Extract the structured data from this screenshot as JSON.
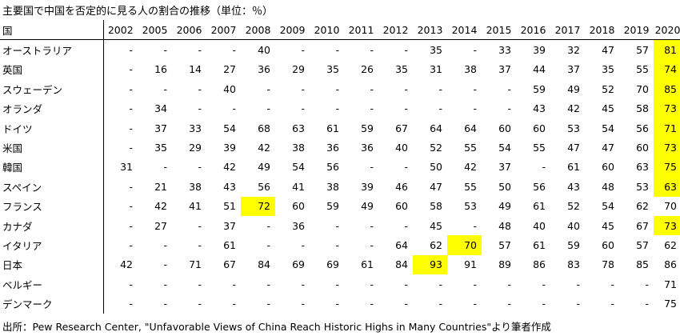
{
  "title": "主要国で中国を否定的に見る人の割合の推移（単位：％）",
  "source": "出所：Pew Research Center, \"Unfavorable Views of China Reach Historic Highs in Many Countries\"より筆者作成",
  "highlight_color": "#ffff00",
  "table": {
    "header": {
      "country_label": "国",
      "years": [
        "2002",
        "2005",
        "2006",
        "2007",
        "2008",
        "2009",
        "2010",
        "2011",
        "2012",
        "2013",
        "2014",
        "2015",
        "2016",
        "2017",
        "2018",
        "2019",
        "2020"
      ]
    },
    "rows": [
      {
        "country": "オーストラリア",
        "values": [
          "-",
          "-",
          "-",
          "-",
          "40",
          "-",
          "-",
          "-",
          "-",
          "35",
          "-",
          "33",
          "39",
          "32",
          "47",
          "57",
          "81"
        ],
        "highlight": [
          16
        ]
      },
      {
        "country": "英国",
        "values": [
          "-",
          "16",
          "14",
          "27",
          "36",
          "29",
          "35",
          "26",
          "35",
          "31",
          "38",
          "37",
          "44",
          "37",
          "35",
          "55",
          "74"
        ],
        "highlight": [
          16
        ]
      },
      {
        "country": "スウェーデン",
        "values": [
          "-",
          "-",
          "-",
          "40",
          "-",
          "-",
          "-",
          "-",
          "-",
          "-",
          "-",
          "-",
          "59",
          "49",
          "52",
          "70",
          "85"
        ],
        "highlight": [
          16
        ]
      },
      {
        "country": "オランダ",
        "values": [
          "-",
          "34",
          "-",
          "-",
          "-",
          "-",
          "-",
          "-",
          "-",
          "-",
          "-",
          "-",
          "43",
          "42",
          "45",
          "58",
          "73"
        ],
        "highlight": [
          16
        ]
      },
      {
        "country": "ドイツ",
        "values": [
          "-",
          "37",
          "33",
          "54",
          "68",
          "63",
          "61",
          "59",
          "67",
          "64",
          "64",
          "60",
          "60",
          "53",
          "54",
          "56",
          "71"
        ],
        "highlight": [
          16
        ]
      },
      {
        "country": "米国",
        "values": [
          "-",
          "35",
          "29",
          "39",
          "42",
          "38",
          "36",
          "36",
          "40",
          "52",
          "55",
          "54",
          "55",
          "47",
          "47",
          "60",
          "73"
        ],
        "highlight": [
          16
        ]
      },
      {
        "country": "韓国",
        "values": [
          "31",
          "-",
          "-",
          "42",
          "49",
          "54",
          "56",
          "-",
          "-",
          "50",
          "42",
          "37",
          "-",
          "61",
          "60",
          "63",
          "75"
        ],
        "highlight": [
          16
        ]
      },
      {
        "country": "スペイン",
        "values": [
          "-",
          "21",
          "38",
          "43",
          "56",
          "41",
          "38",
          "39",
          "46",
          "47",
          "55",
          "50",
          "56",
          "43",
          "48",
          "53",
          "63"
        ],
        "highlight": [
          16
        ]
      },
      {
        "country": "フランス",
        "values": [
          "-",
          "42",
          "41",
          "51",
          "72",
          "60",
          "59",
          "49",
          "60",
          "58",
          "53",
          "49",
          "61",
          "52",
          "54",
          "62",
          "70"
        ],
        "highlight": [
          4
        ]
      },
      {
        "country": "カナダ",
        "values": [
          "-",
          "27",
          "-",
          "37",
          "-",
          "36",
          "-",
          "-",
          "-",
          "45",
          "-",
          "48",
          "40",
          "40",
          "45",
          "67",
          "73"
        ],
        "highlight": [
          16
        ]
      },
      {
        "country": "イタリア",
        "values": [
          "-",
          "-",
          "-",
          "61",
          "-",
          "-",
          "-",
          "-",
          "64",
          "62",
          "70",
          "57",
          "61",
          "59",
          "60",
          "57",
          "62"
        ],
        "highlight": [
          10
        ]
      },
      {
        "country": "日本",
        "values": [
          "42",
          "-",
          "71",
          "67",
          "84",
          "69",
          "69",
          "61",
          "84",
          "93",
          "91",
          "89",
          "86",
          "83",
          "78",
          "85",
          "86"
        ],
        "highlight": [
          9
        ]
      },
      {
        "country": "ベルギー",
        "values": [
          "-",
          "-",
          "-",
          "-",
          "-",
          "-",
          "-",
          "-",
          "-",
          "-",
          "-",
          "-",
          "-",
          "-",
          "-",
          "-",
          "71"
        ],
        "highlight": []
      },
      {
        "country": "デンマーク",
        "values": [
          "-",
          "-",
          "-",
          "-",
          "-",
          "-",
          "-",
          "-",
          "-",
          "-",
          "-",
          "-",
          "-",
          "-",
          "-",
          "-",
          "75"
        ],
        "highlight": []
      }
    ]
  }
}
